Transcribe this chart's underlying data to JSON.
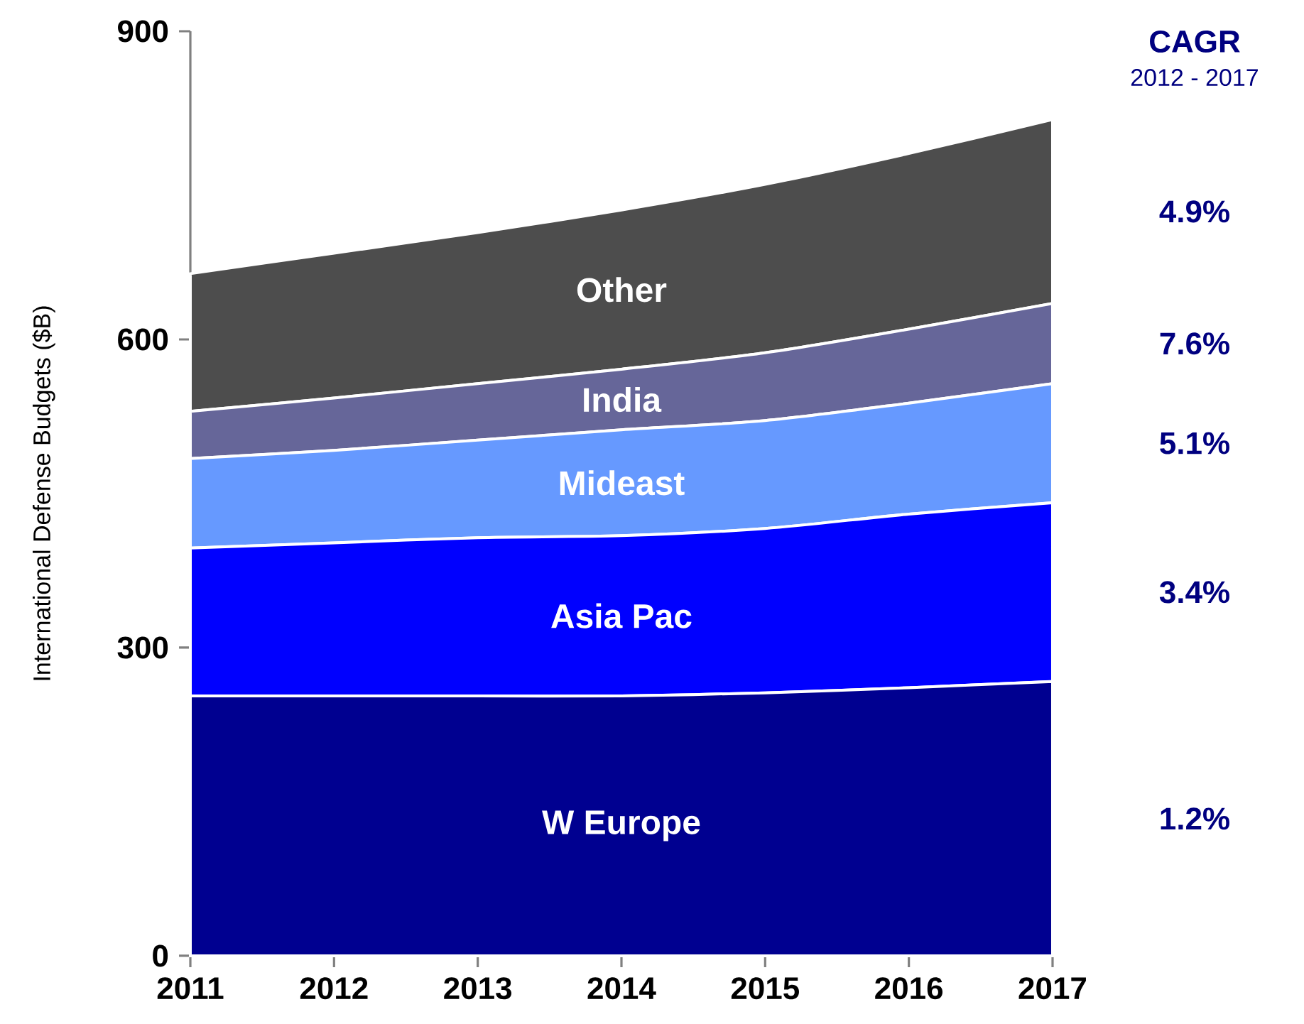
{
  "chart_data": {
    "type": "area",
    "stacked": true,
    "ylabel": "International Defense Budgets ($B)",
    "x": [
      2011,
      2012,
      2013,
      2014,
      2015,
      2016,
      2017
    ],
    "xlim": [
      2011,
      2017
    ],
    "xticks": [
      2011,
      2012,
      2013,
      2014,
      2015,
      2016,
      2017
    ],
    "ylim": [
      0,
      900
    ],
    "yticks": [
      0,
      300,
      600,
      900
    ],
    "series": [
      {
        "name": "W Europe",
        "color": "#000090",
        "values": [
          253,
          253,
          253,
          253,
          256,
          261,
          267
        ]
      },
      {
        "name": "Asia Pac",
        "color": "#0000ff",
        "values": [
          144,
          149,
          154,
          156,
          160,
          169,
          174
        ]
      },
      {
        "name": "Mideast",
        "color": "#6699ff",
        "values": [
          87,
          90,
          95,
          103,
          105,
          108,
          116
        ]
      },
      {
        "name": "India",
        "color": "#666699",
        "values": [
          46,
          51,
          55,
          59,
          66,
          72,
          78
        ]
      },
      {
        "name": "Other",
        "color": "#4d4d4d",
        "values": [
          134,
          141,
          147,
          155,
          164,
          171,
          179
        ]
      }
    ],
    "annotations": [
      "CAGR",
      "2012 - 2017",
      "4.9%",
      "7.6%",
      "5.1%",
      "3.4%",
      "1.2%"
    ],
    "grid": false
  }
}
